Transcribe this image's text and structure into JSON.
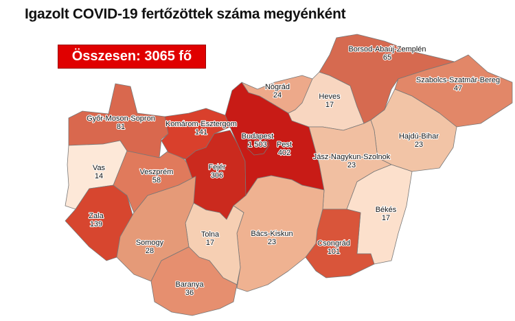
{
  "title": "Igazolt COVID-19 fertőzöttek száma megyénként",
  "total_label": "Összesen: 3065 fő",
  "counties": [
    {
      "name": "Győr-Moson-Sopron",
      "value": "81",
      "color": "#d9684e"
    },
    {
      "name": "Vas",
      "value": "14",
      "color": "#fde8d8"
    },
    {
      "name": "Zala",
      "value": "139",
      "color": "#d7462f"
    },
    {
      "name": "Veszprém",
      "value": "58",
      "color": "#e07a5c"
    },
    {
      "name": "Komárom-Esztergom",
      "value": "141",
      "color": "#d9402c"
    },
    {
      "name": "Fejér",
      "value": "306",
      "color": "#cb2a1e"
    },
    {
      "name": "Pest",
      "value": "402",
      "color": "#c81b16"
    },
    {
      "name": "Budapest",
      "value": "1 503",
      "color": "#c41c15"
    },
    {
      "name": "Nógrád",
      "value": "24",
      "color": "#eda98a"
    },
    {
      "name": "Heves",
      "value": "17",
      "color": "#f8d6c0"
    },
    {
      "name": "Borsod-Abaúj-Zemplén",
      "value": "65",
      "color": "#d66a50"
    },
    {
      "name": "Szabolcs-Szatmár-Bereg",
      "value": "47",
      "color": "#e28768"
    },
    {
      "name": "Hajdú-Bihar",
      "value": "23",
      "color": "#f2c4a6"
    },
    {
      "name": "Jász-Nagykun-Szolnok",
      "value": "23",
      "color": "#f1bfa1"
    },
    {
      "name": "Békés",
      "value": "17",
      "color": "#fce0cc"
    },
    {
      "name": "Csongrád",
      "value": "101",
      "color": "#d9553a"
    },
    {
      "name": "Bács-Kiskun",
      "value": "23",
      "color": "#efb291"
    },
    {
      "name": "Tolna",
      "value": "17",
      "color": "#f6cfb3"
    },
    {
      "name": "Somogy",
      "value": "28",
      "color": "#e59a78"
    },
    {
      "name": "Baranya",
      "value": "36",
      "color": "#e68f6f"
    }
  ]
}
